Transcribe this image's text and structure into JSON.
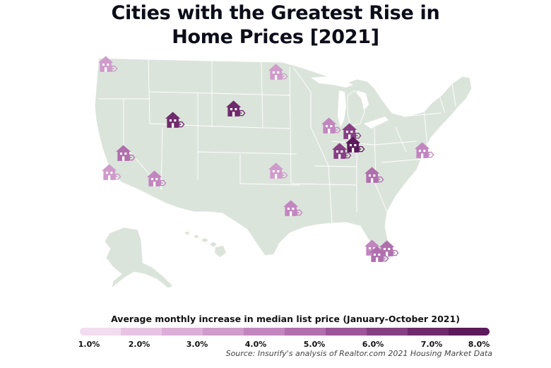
{
  "title": {
    "line1": "Cities with the Greatest Rise in",
    "line2": "Home Prices [2021]"
  },
  "legend": {
    "title": "Average monthly increase in median list price (January-October 2021)",
    "ticks": [
      "1.0%",
      "2.0%",
      "3.0%",
      "4.0%",
      "5.0%",
      "6.0%",
      "7.0%",
      "8.0%"
    ],
    "colors": [
      "#f2dcef",
      "#e8c4e4",
      "#dbaed7",
      "#cf9bcb",
      "#c286bf",
      "#b06fad",
      "#9c5598",
      "#853f83",
      "#6f2a6c",
      "#5c1a5a"
    ]
  },
  "source": "Source: Insurify's analysis of Realtor.com 2021 Housing Market Data",
  "colors": {
    "land": "#dbe4db",
    "land_border": "#ffffff",
    "water": "#ffffff"
  },
  "markers": [
    {
      "name": "seattle-marker",
      "level": 3.4
    },
    {
      "name": "minneapolis-marker",
      "level": 3.6
    },
    {
      "name": "boise-marker",
      "level": 7.6
    },
    {
      "name": "rapid-city-marker",
      "level": 7.2
    },
    {
      "name": "sacramento-marker",
      "level": 5.0
    },
    {
      "name": "san-jose-marker",
      "level": 3.6
    },
    {
      "name": "phoenix-marker",
      "level": 3.8
    },
    {
      "name": "oklahoma-city-marker",
      "level": 3.6
    },
    {
      "name": "dallas-marker",
      "level": 3.9
    },
    {
      "name": "chicago-marker",
      "level": 4.0
    },
    {
      "name": "fort-wayne-marker",
      "level": 6.4
    },
    {
      "name": "columbus-marker",
      "level": 8.0
    },
    {
      "name": "indianapolis-marker",
      "level": 6.6
    },
    {
      "name": "nashville-marker",
      "level": 5.2
    },
    {
      "name": "philadelphia-marker",
      "level": 4.0
    },
    {
      "name": "tampa-marker",
      "level": 3.9
    },
    {
      "name": "orlando-marker",
      "level": 4.6
    },
    {
      "name": "miami-marker",
      "level": 4.8
    }
  ]
}
